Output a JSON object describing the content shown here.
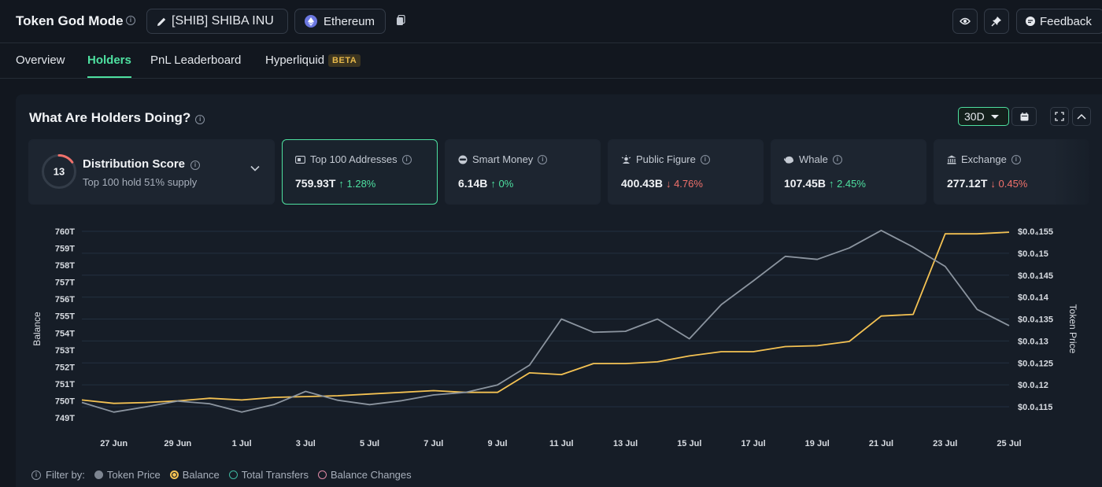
{
  "header": {
    "title": "Token God Mode",
    "token_label": "[SHIB] SHIBA INU",
    "chain_label": "Ethereum",
    "feedback_label": "Feedback"
  },
  "tabs": [
    {
      "label": "Overview"
    },
    {
      "label": "Holders"
    },
    {
      "label": "PnL Leaderboard"
    },
    {
      "label": "Hyperliquid",
      "badge": "BETA"
    }
  ],
  "panel": {
    "title": "What Are Holders Doing?",
    "range": "30D"
  },
  "distribution": {
    "score": "13",
    "title": "Distribution Score",
    "subtitle": "Top 100 hold 51% supply"
  },
  "metrics": [
    {
      "label": "Top 100 Addresses",
      "value": "759.93T",
      "change": "1.28%",
      "direction": "up",
      "icon": "wallet-icon"
    },
    {
      "label": "Smart Money",
      "value": "6.14B",
      "change": "0%",
      "direction": "up",
      "icon": "smart-money-icon"
    },
    {
      "label": "Public Figure",
      "value": "400.43B",
      "change": "4.76%",
      "direction": "down",
      "icon": "public-figure-icon"
    },
    {
      "label": "Whale",
      "value": "107.45B",
      "change": "2.45%",
      "direction": "up",
      "icon": "whale-icon"
    },
    {
      "label": "Exchange",
      "value": "277.12T",
      "change": "0.45%",
      "direction": "down",
      "icon": "bank-icon"
    }
  ],
  "chart_data": {
    "type": "line",
    "x": [
      "26 Jun",
      "27 Jun",
      "28 Jun",
      "29 Jun",
      "30 Jun",
      "1 Jul",
      "2 Jul",
      "3 Jul",
      "4 Jul",
      "5 Jul",
      "6 Jul",
      "7 Jul",
      "8 Jul",
      "9 Jul",
      "10 Jul",
      "11 Jul",
      "12 Jul",
      "13 Jul",
      "14 Jul",
      "15 Jul",
      "16 Jul",
      "17 Jul",
      "18 Jul",
      "19 Jul",
      "20 Jul",
      "21 Jul",
      "22 Jul",
      "23 Jul",
      "24 Jul",
      "25 Jul"
    ],
    "x_tick_labels": [
      "27 Jun",
      "29 Jun",
      "1 Jul",
      "3 Jul",
      "5 Jul",
      "7 Jul",
      "9 Jul",
      "11 Jul",
      "13 Jul",
      "15 Jul",
      "17 Jul",
      "19 Jul",
      "21 Jul",
      "23 Jul",
      "25 Jul"
    ],
    "ylabel": "Balance",
    "y2label": "Token Price",
    "y_ticks": [
      "749T",
      "750T",
      "751T",
      "752T",
      "753T",
      "754T",
      "755T",
      "756T",
      "757T",
      "758T",
      "759T",
      "760T"
    ],
    "y2_ticks": [
      "$0.0₄115",
      "$0.0₄12",
      "$0.0₄125",
      "$0.0₄13",
      "$0.0₄135",
      "$0.0₄14",
      "$0.0₄145",
      "$0.0₄15",
      "$0.0₄155"
    ],
    "ylim": [
      749,
      760
    ],
    "y2lim": [
      11.25,
      15.5
    ],
    "grid": true,
    "series": [
      {
        "name": "Balance",
        "axis": "left",
        "color": "#f4c253",
        "values": [
          750.05,
          749.85,
          749.9,
          750.0,
          750.15,
          750.05,
          750.2,
          750.25,
          750.3,
          750.4,
          750.5,
          750.6,
          750.5,
          750.5,
          751.65,
          751.55,
          752.2,
          752.2,
          752.3,
          752.65,
          752.9,
          752.9,
          753.2,
          753.25,
          753.5,
          755.0,
          755.1,
          759.85,
          759.85,
          759.95
        ]
      },
      {
        "name": "Token Price",
        "axis": "right",
        "color": "#8b949f",
        "values": [
          11.6,
          11.38,
          11.5,
          11.63,
          11.57,
          11.38,
          11.55,
          11.85,
          11.65,
          11.55,
          11.64,
          11.77,
          11.83,
          12.0,
          12.45,
          13.5,
          13.2,
          13.22,
          13.5,
          13.05,
          13.83,
          14.37,
          14.93,
          14.86,
          15.12,
          15.52,
          15.14,
          14.7,
          13.72,
          13.35
        ]
      }
    ]
  },
  "legend": {
    "prefix": "Filter by:",
    "items": [
      {
        "label": "Token Price",
        "color": "#7d8591",
        "filled": true
      },
      {
        "label": "Balance",
        "color": "#f4c253",
        "filled": true
      },
      {
        "label": "Total Transfers",
        "color": "#3fb8a0",
        "filled": false
      },
      {
        "label": "Balance Changes",
        "color": "#e08aa6",
        "filled": false
      }
    ]
  }
}
